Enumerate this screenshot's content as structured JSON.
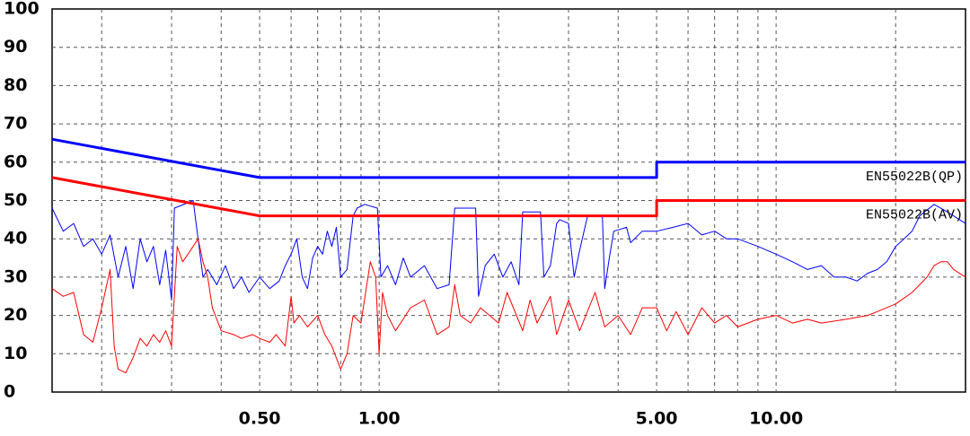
{
  "chart_data": {
    "type": "line",
    "xscale": "log",
    "xlim": [
      0.15,
      30
    ],
    "ylim": [
      0,
      100
    ],
    "yticks": [
      0,
      10,
      20,
      30,
      40,
      50,
      60,
      70,
      80,
      90,
      100
    ],
    "xticks": [
      {
        "value": 0.5,
        "label": "0.50"
      },
      {
        "value": 1,
        "label": "1.00"
      },
      {
        "value": 5,
        "label": "5.00"
      },
      {
        "value": 10,
        "label": "10.00"
      }
    ],
    "xgrid": [
      0.2,
      0.3,
      0.4,
      0.5,
      0.6,
      0.7,
      0.8,
      0.9,
      1,
      2,
      3,
      4,
      5,
      6,
      7,
      8,
      9,
      10,
      20
    ],
    "grid": true,
    "series": [
      {
        "name": "EN55022B(QP)",
        "color": "#0000ff",
        "width": 3,
        "x": [
          0.15,
          0.5,
          5,
          5,
          30
        ],
        "values": [
          66,
          56,
          56,
          60,
          60
        ]
      },
      {
        "name": "EN55022B(AV)",
        "color": "#ff0000",
        "width": 3,
        "x": [
          0.15,
          0.5,
          5,
          5,
          30
        ],
        "values": [
          56,
          46,
          46,
          50,
          50
        ]
      },
      {
        "color": "#0000ff",
        "width": 1,
        "x": [
          0.15,
          0.16,
          0.17,
          0.18,
          0.19,
          0.2,
          0.21,
          0.22,
          0.23,
          0.24,
          0.25,
          0.26,
          0.27,
          0.28,
          0.29,
          0.3,
          0.305,
          0.34,
          0.36,
          0.37,
          0.39,
          0.41,
          0.43,
          0.45,
          0.47,
          0.5,
          0.53,
          0.56,
          0.58,
          0.6,
          0.62,
          0.64,
          0.66,
          0.68,
          0.7,
          0.72,
          0.74,
          0.76,
          0.78,
          0.8,
          0.83,
          0.86,
          0.88,
          0.92,
          0.99,
          1.01,
          1.05,
          1.1,
          1.15,
          1.2,
          1.3,
          1.4,
          1.5,
          1.55,
          1.75,
          1.78,
          1.85,
          1.95,
          2.05,
          2.15,
          2.25,
          2.3,
          2.55,
          2.6,
          2.7,
          2.8,
          2.85,
          3.0,
          3.1,
          3.2,
          3.35,
          3.65,
          3.7,
          3.8,
          3.9,
          4.2,
          4.3,
          4.6,
          5,
          5.5,
          6,
          6.5,
          7,
          7.5,
          8,
          9,
          10,
          11,
          12,
          13,
          14,
          15,
          16,
          17,
          18,
          19,
          20,
          21,
          22,
          23,
          25,
          27,
          30
        ],
        "values": [
          48,
          42,
          44,
          38,
          40,
          36,
          41,
          30,
          38,
          27,
          40,
          34,
          38,
          28,
          37,
          24,
          48,
          50,
          30,
          32,
          28,
          33,
          27,
          30,
          26,
          30,
          27,
          29,
          33,
          36,
          40,
          30,
          27,
          35,
          38,
          36,
          42,
          38,
          43,
          30,
          32,
          46,
          48,
          49,
          48,
          30,
          33,
          28,
          35,
          30,
          33,
          27,
          28,
          48,
          48,
          25,
          33,
          36,
          30,
          34,
          28,
          47,
          47,
          30,
          33,
          44,
          45,
          44,
          30,
          37,
          46,
          46,
          27,
          35,
          42,
          43,
          39,
          42,
          42,
          43,
          44,
          41,
          42,
          40,
          40,
          38,
          36,
          34,
          32,
          33,
          30,
          30,
          29,
          31,
          32,
          34,
          38,
          40,
          42,
          46,
          49,
          47,
          44
        ]
      },
      {
        "color": "#ff0000",
        "width": 1,
        "x": [
          0.15,
          0.16,
          0.17,
          0.18,
          0.19,
          0.2,
          0.21,
          0.215,
          0.22,
          0.23,
          0.24,
          0.25,
          0.26,
          0.27,
          0.28,
          0.29,
          0.3,
          0.31,
          0.32,
          0.33,
          0.35,
          0.36,
          0.37,
          0.38,
          0.4,
          0.43,
          0.45,
          0.48,
          0.5,
          0.53,
          0.55,
          0.58,
          0.6,
          0.61,
          0.63,
          0.66,
          0.7,
          0.73,
          0.76,
          0.8,
          0.83,
          0.86,
          0.9,
          0.95,
          0.98,
          1.0,
          1.02,
          1.05,
          1.1,
          1.2,
          1.3,
          1.4,
          1.5,
          1.55,
          1.6,
          1.7,
          1.8,
          2.0,
          2.1,
          2.3,
          2.4,
          2.5,
          2.7,
          2.8,
          3.0,
          3.2,
          3.5,
          3.7,
          4.0,
          4.3,
          4.6,
          5,
          5.3,
          5.6,
          6,
          6.5,
          7,
          7.5,
          8,
          9,
          10,
          11,
          12,
          13,
          15,
          17,
          18,
          20,
          22,
          24,
          25,
          26,
          27,
          28,
          30
        ],
        "values": [
          27,
          25,
          26,
          15,
          13,
          22,
          32,
          12,
          6,
          5,
          9,
          14,
          12,
          15,
          13,
          16,
          12,
          38,
          34,
          36,
          40,
          34,
          30,
          22,
          16,
          15,
          14,
          15,
          14,
          13,
          15,
          12,
          25,
          18,
          20,
          17,
          20,
          15,
          12,
          6,
          10,
          20,
          18,
          34,
          30,
          10,
          26,
          20,
          16,
          22,
          24,
          15,
          17,
          28,
          20,
          18,
          22,
          18,
          26,
          16,
          24,
          18,
          25,
          15,
          24,
          16,
          26,
          17,
          20,
          15,
          22,
          22,
          16,
          21,
          15,
          22,
          18,
          20,
          17,
          19,
          20,
          18,
          19,
          18,
          19,
          20,
          21,
          23,
          26,
          30,
          33,
          34,
          34,
          32,
          30
        ]
      }
    ],
    "annotations": [
      {
        "text": "EN55022B(QP)",
        "x": 30,
        "y": 60
      },
      {
        "text": "EN55022B(AV)",
        "x": 30,
        "y": 50
      }
    ]
  }
}
